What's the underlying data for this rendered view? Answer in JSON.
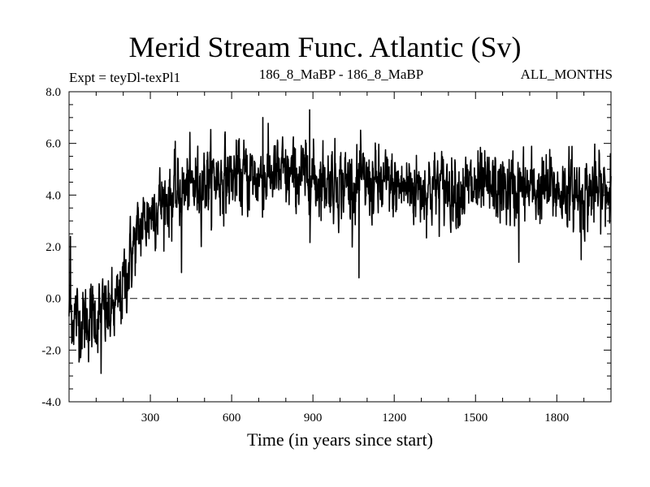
{
  "chart_data": {
    "type": "line",
    "title": "Merid Stream Func. Atlantic (Sv)",
    "subtitle_left": "Expt = teyDl-texPl1",
    "subtitle_center": "186_8_MaBP - 186_8_MaBP",
    "subtitle_right": "ALL_MONTHS",
    "xlabel": "Time (in years since start)",
    "ylabel": "",
    "xlim": [
      0,
      2000
    ],
    "ylim": [
      -4.0,
      8.0
    ],
    "x_ticks": [
      300,
      600,
      900,
      1200,
      1500,
      1800
    ],
    "x_tick_labels": [
      "300",
      "600",
      "900",
      "1200",
      "1500",
      "1800"
    ],
    "y_ticks": [
      -4,
      -2,
      0,
      2,
      4,
      6,
      8
    ],
    "y_tick_labels": [
      "-4.0",
      "-2.0",
      "0.0",
      "2.0",
      "4.0",
      "6.0",
      "8.0"
    ],
    "reference_line": {
      "y": 0.0,
      "style": "dashed"
    },
    "series": [
      {
        "name": "Merid Stream Func. Atlantic",
        "anchors_x": [
          0,
          10,
          50,
          100,
          150,
          180,
          200,
          230,
          260,
          290,
          320,
          350,
          400,
          450,
          500,
          550,
          600,
          650,
          700,
          750,
          800,
          850,
          900,
          950,
          1000,
          1100,
          1200,
          1300,
          1400,
          1500,
          1600,
          1700,
          1800,
          1900,
          2000
        ],
        "anchors_mean": [
          -0.5,
          -0.6,
          -0.9,
          -0.7,
          -0.6,
          -0.3,
          0.5,
          1.7,
          2.6,
          3.2,
          3.6,
          3.8,
          4.0,
          4.3,
          4.6,
          4.7,
          4.7,
          4.7,
          4.7,
          4.8,
          4.7,
          4.7,
          4.6,
          4.6,
          4.5,
          4.4,
          4.3,
          4.3,
          4.3,
          4.2,
          4.2,
          4.2,
          4.2,
          4.1,
          4.1
        ],
        "noise_sd": 0.62,
        "spikes": [
          {
            "x": 5,
            "y": 2.4
          },
          {
            "x": 118,
            "y": -2.9
          },
          {
            "x": 415,
            "y": 1.0
          },
          {
            "x": 715,
            "y": 7.0
          },
          {
            "x": 888,
            "y": 7.3
          },
          {
            "x": 1070,
            "y": 0.8
          },
          {
            "x": 1660,
            "y": 1.4
          },
          {
            "x": 1890,
            "y": 1.5
          },
          {
            "x": 1998,
            "y": 5.6
          }
        ]
      }
    ]
  }
}
